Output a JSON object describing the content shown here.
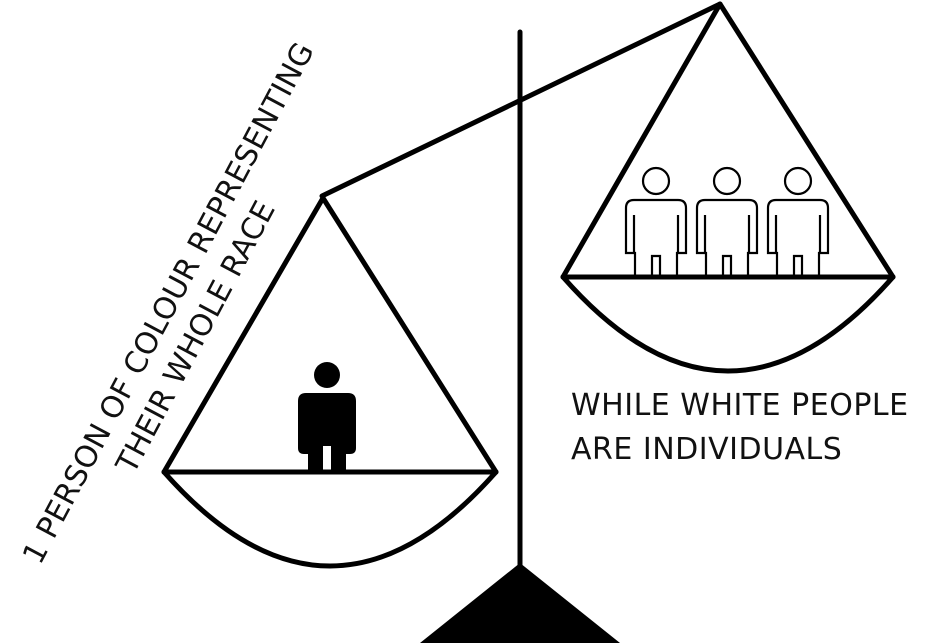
{
  "left_label": {
    "line1": "1 PERSON OF COLOUR REPRESENTING",
    "line2": "THEIR WHOLE RACE"
  },
  "right_label": {
    "line1": "WHILE WHITE PEOPLE",
    "line2": "ARE INDIVIDUALS"
  },
  "colors": {
    "ink": "#000000",
    "background": "#ffffff"
  },
  "figures": {
    "left_pan": {
      "count": 1,
      "style": "solid-person-icon"
    },
    "right_pan": {
      "count": 3,
      "style": "outlined-person-icon"
    }
  }
}
